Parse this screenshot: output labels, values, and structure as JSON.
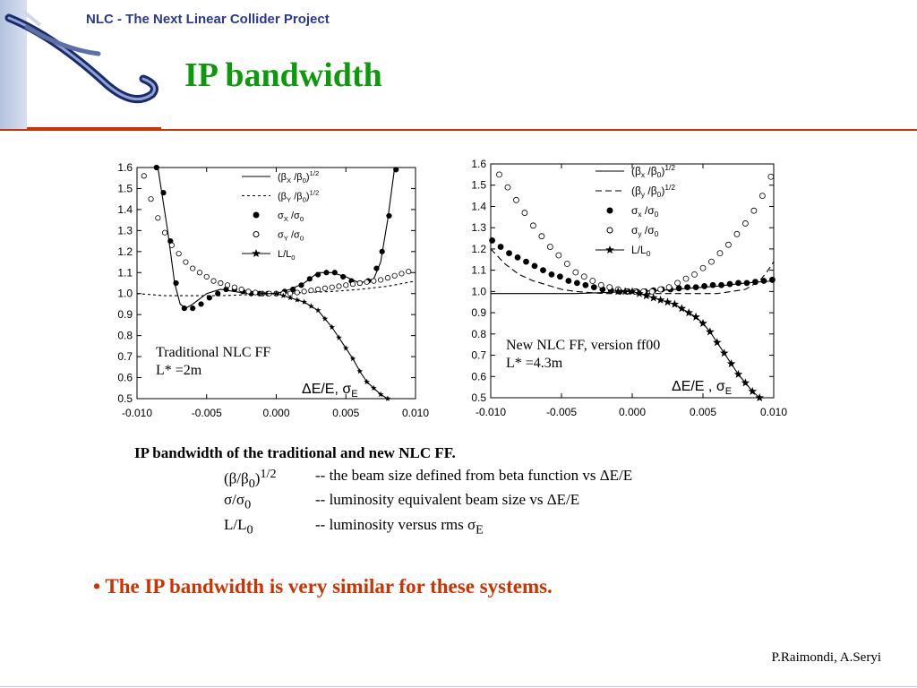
{
  "header": {
    "project_title": "NLC - The Next Linear Collider Project",
    "slide_title": "IP bandwidth"
  },
  "colors": {
    "title_green": "#0c9a0c",
    "header_blue": "#2b3a8f",
    "accent_red": "#cc3300"
  },
  "chart_data": [
    {
      "type": "line",
      "xlim": [
        -0.01,
        0.01
      ],
      "ylim": [
        0.5,
        1.6
      ],
      "x_ticks": [
        "-0.010",
        "-0.005",
        "0.000",
        "0.005",
        "0.010"
      ],
      "y_ticks": [
        "0.5",
        "0.6",
        "0.7",
        "0.8",
        "0.9",
        "1.0",
        "1.1",
        "1.2",
        "1.3",
        "1.4",
        "1.5",
        "1.6"
      ],
      "annotation_lines": [
        "Traditional NLC FF",
        "L* =2m"
      ],
      "series": [
        {
          "name": "(βX /β0)1/2",
          "style": "solid",
          "x": [
            -0.0085,
            -0.0078,
            -0.0073,
            -0.0069,
            -0.0065,
            -0.006,
            -0.005,
            -0.004,
            -0.003,
            -0.002,
            -0.001,
            0,
            0.001,
            0.002,
            0.003,
            0.004,
            0.005,
            0.006,
            0.007,
            0.0075,
            0.008,
            0.0085
          ],
          "y": [
            1.6,
            1.3,
            1.05,
            0.95,
            0.93,
            0.95,
            1.0,
            1.02,
            1.01,
            1.0,
            1.0,
            1.0,
            1.02,
            1.05,
            1.1,
            1.1,
            1.08,
            1.05,
            1.07,
            1.15,
            1.35,
            1.6
          ]
        },
        {
          "name": "(βY /β0)1/2",
          "style": "dashed",
          "x": [
            -0.01,
            -0.008,
            -0.006,
            -0.004,
            -0.002,
            0,
            0.002,
            0.004,
            0.006,
            0.008,
            0.01
          ],
          "y": [
            1.0,
            0.99,
            0.99,
            0.99,
            0.995,
            1.0,
            1.005,
            1.01,
            1.02,
            1.035,
            1.06
          ]
        },
        {
          "name": "σX /σ0",
          "style": "filled-circle",
          "x": [
            -0.0086,
            -0.0081,
            -0.0076,
            -0.0072,
            -0.0066,
            -0.006,
            -0.0054,
            -0.0048,
            -0.0042,
            -0.0036,
            -0.003,
            -0.0024,
            -0.0018,
            -0.0012,
            -0.0006,
            0,
            0.0006,
            0.0012,
            0.0018,
            0.0024,
            0.003,
            0.0036,
            0.0042,
            0.0048,
            0.0054,
            0.006,
            0.0066,
            0.0072,
            0.0076,
            0.0081,
            0.0086
          ],
          "y": [
            1.6,
            1.48,
            1.25,
            1.05,
            0.93,
            0.93,
            0.95,
            0.98,
            1.0,
            1.02,
            1.02,
            1.01,
            1.0,
            1.0,
            1.0,
            1.0,
            1.01,
            1.02,
            1.04,
            1.07,
            1.09,
            1.1,
            1.1,
            1.08,
            1.06,
            1.05,
            1.06,
            1.12,
            1.2,
            1.37,
            1.59
          ]
        },
        {
          "name": "σY /σ0",
          "style": "open-circle",
          "x": [
            -0.0095,
            -0.009,
            -0.0085,
            -0.008,
            -0.0075,
            -0.007,
            -0.0065,
            -0.006,
            -0.0055,
            -0.005,
            -0.0045,
            -0.004,
            -0.0035,
            -0.003,
            -0.0025,
            -0.002,
            -0.0015,
            -0.001,
            -0.0005,
            0,
            0.0005,
            0.001,
            0.0015,
            0.002,
            0.0025,
            0.003,
            0.0035,
            0.004,
            0.0045,
            0.005,
            0.0055,
            0.006,
            0.0065,
            0.007,
            0.0075,
            0.008,
            0.0085,
            0.009,
            0.0095
          ],
          "y": [
            1.56,
            1.45,
            1.36,
            1.29,
            1.23,
            1.19,
            1.15,
            1.12,
            1.1,
            1.08,
            1.06,
            1.05,
            1.04,
            1.03,
            1.02,
            1.01,
            1.005,
            1.0,
            1.0,
            1.0,
            1.0,
            1.0,
            1.005,
            1.01,
            1.015,
            1.02,
            1.025,
            1.03,
            1.035,
            1.04,
            1.045,
            1.05,
            1.055,
            1.06,
            1.065,
            1.075,
            1.085,
            1.095,
            1.105
          ]
        },
        {
          "name": "L/L0",
          "style": "solid-star",
          "x": [
            -0.001,
            0,
            0.0005,
            0.001,
            0.0015,
            0.002,
            0.0025,
            0.003,
            0.0035,
            0.004,
            0.0045,
            0.005,
            0.0055,
            0.006,
            0.0065,
            0.007,
            0.0075,
            0.008
          ],
          "y": [
            1.0,
            1.0,
            0.99,
            0.98,
            0.97,
            0.96,
            0.94,
            0.92,
            0.88,
            0.84,
            0.79,
            0.74,
            0.69,
            0.63,
            0.58,
            0.55,
            0.52,
            0.5
          ]
        }
      ],
      "xlabel_text": "ΔE/E, σ",
      "xlabel_sub": "E"
    },
    {
      "type": "line",
      "xlim": [
        -0.01,
        0.01
      ],
      "ylim": [
        0.5,
        1.6
      ],
      "x_ticks": [
        "-0.010",
        "-0.005",
        "0.000",
        "0.005",
        "0.010"
      ],
      "y_ticks": [
        "0.5",
        "0.6",
        "0.7",
        "0.8",
        "0.9",
        "1.0",
        "1.1",
        "1.2",
        "1.3",
        "1.4",
        "1.5",
        "1.6"
      ],
      "annotation_lines": [
        "New NLC FF, version ff00",
        "L* =4.3m"
      ],
      "series": [
        {
          "name": "(βX /β0)1/2",
          "style": "solid",
          "x": [
            -0.01,
            -0.008,
            -0.006,
            -0.004,
            -0.002,
            0,
            0.002,
            0.004,
            0.006,
            0.008,
            0.01
          ],
          "y": [
            0.99,
            0.99,
            0.99,
            0.99,
            0.995,
            1.0,
            1.005,
            1.015,
            1.025,
            1.04,
            1.05
          ]
        },
        {
          "name": "(βY /β0)1/2",
          "style": "dashed",
          "x": [
            -0.01,
            -0.009,
            -0.008,
            -0.007,
            -0.006,
            -0.005,
            -0.004,
            -0.002,
            0,
            0.002,
            0.004,
            0.006,
            0.007,
            0.008,
            0.009,
            0.0095,
            0.01
          ],
          "y": [
            1.2,
            1.13,
            1.08,
            1.05,
            1.03,
            1.01,
            1.0,
            0.99,
            0.99,
            0.99,
            0.99,
            0.99,
            1.0,
            1.01,
            1.05,
            1.09,
            1.14
          ]
        },
        {
          "name": "σx /σ0",
          "style": "filled-circle",
          "x": [
            -0.0099,
            -0.0093,
            -0.0087,
            -0.0081,
            -0.0075,
            -0.0069,
            -0.0063,
            -0.0057,
            -0.0051,
            -0.0045,
            -0.0039,
            -0.0033,
            -0.0027,
            -0.0021,
            -0.0015,
            -0.0009,
            -0.0003,
            0.0003,
            0.0009,
            0.0015,
            0.0021,
            0.0027,
            0.0033,
            0.0039,
            0.0045,
            0.0051,
            0.0057,
            0.0063,
            0.0069,
            0.0075,
            0.0081,
            0.0087,
            0.0093,
            0.0099
          ],
          "y": [
            1.24,
            1.21,
            1.18,
            1.16,
            1.14,
            1.12,
            1.1,
            1.08,
            1.07,
            1.05,
            1.04,
            1.03,
            1.02,
            1.01,
            1.005,
            1.0,
            1.0,
            1.0,
            1.0,
            1.005,
            1.01,
            1.01,
            1.015,
            1.02,
            1.02,
            1.025,
            1.03,
            1.03,
            1.035,
            1.04,
            1.04,
            1.045,
            1.05,
            1.055
          ]
        },
        {
          "name": "σy /σ0",
          "style": "open-circle",
          "x": [
            -0.0094,
            -0.0088,
            -0.0082,
            -0.0076,
            -0.007,
            -0.0064,
            -0.0058,
            -0.0052,
            -0.0046,
            -0.004,
            -0.0034,
            -0.0028,
            -0.0022,
            -0.0016,
            -0.001,
            -0.0004,
            0.0002,
            0.0008,
            0.0014,
            0.002,
            0.0026,
            0.0032,
            0.0038,
            0.0044,
            0.005,
            0.0056,
            0.0062,
            0.0068,
            0.0074,
            0.008,
            0.0086,
            0.0092,
            0.0098
          ],
          "y": [
            1.55,
            1.49,
            1.43,
            1.37,
            1.31,
            1.26,
            1.21,
            1.17,
            1.13,
            1.09,
            1.07,
            1.05,
            1.03,
            1.02,
            1.01,
            1.0,
            1.0,
            1.0,
            1.0,
            1.01,
            1.02,
            1.04,
            1.06,
            1.08,
            1.11,
            1.14,
            1.18,
            1.22,
            1.27,
            1.32,
            1.38,
            1.45,
            1.54
          ]
        },
        {
          "name": "L/L0",
          "style": "solid-star",
          "x": [
            -0.001,
            -0.0005,
            0,
            0.0005,
            0.001,
            0.0015,
            0.002,
            0.0025,
            0.003,
            0.0035,
            0.004,
            0.0045,
            0.005,
            0.0055,
            0.006,
            0.0065,
            0.007,
            0.0075,
            0.008,
            0.0085,
            0.009
          ],
          "y": [
            1.0,
            1.0,
            1.0,
            0.99,
            0.98,
            0.97,
            0.96,
            0.95,
            0.94,
            0.92,
            0.9,
            0.88,
            0.85,
            0.81,
            0.76,
            0.71,
            0.66,
            0.61,
            0.57,
            0.53,
            0.5
          ]
        }
      ],
      "xlabel_text": "ΔE/E , σ",
      "xlabel_sub": "E"
    }
  ],
  "legend_labels": {
    "left": [
      "(βX /β0)1/2",
      "(βY /β0)1/2",
      "σX /σ0",
      "σY /σ0",
      "L/L0"
    ],
    "right": [
      "(βx /β0)1/2",
      "(βy /β0)1/2",
      "σx /σ0",
      "σy /σ0",
      "L/L0"
    ]
  },
  "caption": {
    "title": "IP bandwidth of the traditional and new NLC FF.",
    "rows": [
      {
        "symbol": "(β/β0)1/2",
        "text": "-- the beam size defined from beta function vs ΔE/E"
      },
      {
        "symbol": "σ/σ0",
        "text": "-- luminosity equivalent beam size vs ΔE/E"
      },
      {
        "symbol": "L/L0",
        "text": "-- luminosity versus rms σE"
      }
    ]
  },
  "bullet": "• The IP bandwidth is very similar for these systems.",
  "authors": "P.Raimondi, A.Seryi"
}
